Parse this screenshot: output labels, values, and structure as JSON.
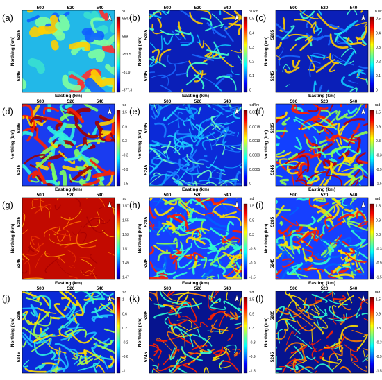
{
  "panels": [
    {
      "label": "(a)",
      "x_label": null,
      "x_ticks": [
        "500",
        "520",
        "540"
      ],
      "y_label": "Northing (km)",
      "y_ticks": [
        "5285",
        "5245"
      ],
      "colorbar": {
        "unit": "nT",
        "ticks": [
          "654.4",
          "589",
          "253.5",
          "-81.9",
          "-377.3"
        ]
      }
    },
    {
      "label": "(b)",
      "x_label": null,
      "x_ticks": [
        "500",
        "520",
        "540"
      ],
      "y_label": "Northing (km)",
      "y_ticks": [
        "5285",
        "5245"
      ],
      "colorbar": {
        "unit": "nT/km",
        "ticks": [
          "0.5",
          "0.4",
          "0.3",
          "0.2",
          "0.1",
          "0"
        ]
      }
    },
    {
      "label": "(c)",
      "x_label": null,
      "x_ticks": [
        "500",
        "520",
        "540"
      ],
      "y_label": "Northing (km)",
      "y_ticks": [
        "5285",
        "5245"
      ],
      "colorbar": {
        "unit": "nT/km",
        "ticks": [
          "0.5",
          "0.4",
          "0.3",
          "0.2",
          "0.1",
          "0"
        ]
      }
    },
    {
      "label": "(d)",
      "x_label": "Easting (km)",
      "x_ticks": [
        "500",
        "520",
        "540"
      ],
      "y_label": "Northing (km)",
      "y_ticks": [
        "5285",
        "5245"
      ],
      "colorbar": {
        "unit": "rad",
        "ticks": [
          "1.5",
          "0.9",
          "0.3",
          "-0.3",
          "-0.9",
          "-1.5"
        ]
      }
    },
    {
      "label": "(e)",
      "x_label": "Easting (km)",
      "x_ticks": [
        "500",
        "520",
        "540"
      ],
      "y_label": "Northing (km)",
      "y_ticks": [
        "5285",
        "5245"
      ],
      "colorbar": {
        "unit": "rad/km",
        "ticks": [
          "0.0022",
          "0.0018",
          "0.0013",
          "0.0009",
          "0.0005",
          "0"
        ]
      }
    },
    {
      "label": "(f)",
      "x_label": "Easting (km)",
      "x_ticks": [
        "500",
        "520",
        "540"
      ],
      "y_label": "Northing (km)",
      "y_ticks": [
        "5285",
        "5245"
      ],
      "colorbar": {
        "unit": "rad",
        "ticks": [
          "1.5",
          "0.9",
          "0.3",
          "-0.3",
          "-0.9",
          "-1.5"
        ]
      }
    },
    {
      "label": "(g)",
      "x_label": "Easting (km)",
      "x_ticks": [
        "500",
        "520",
        "540"
      ],
      "y_label": "Northing (km)",
      "y_ticks": [
        "5285",
        "5245"
      ],
      "colorbar": {
        "unit": "rad",
        "ticks": [
          "1.57",
          "1.55",
          "1.53",
          "1.51",
          "1.49",
          "1.47"
        ]
      }
    },
    {
      "label": "(h)",
      "x_label": "Easting (km)",
      "x_ticks": [
        "500",
        "520",
        "540"
      ],
      "y_label": "Northing (km)",
      "y_ticks": [
        "5285",
        "5245"
      ],
      "colorbar": {
        "unit": "rad",
        "ticks": [
          "1.5",
          "0.9",
          "0.3",
          "-0.3",
          "-0.9",
          "-1.5"
        ]
      }
    },
    {
      "label": "(i)",
      "x_label": "Easting (km)",
      "x_ticks": [
        "500",
        "520",
        "540"
      ],
      "y_label": "Northing (km)",
      "y_ticks": [
        "5285",
        "5245"
      ],
      "colorbar": {
        "unit": "rad",
        "ticks": [
          "1.5",
          "0.9",
          "0.3",
          "-0.3",
          "-0.9",
          "-1.5"
        ]
      }
    },
    {
      "label": "(j)",
      "x_label": "Easting (km)",
      "x_ticks": [
        "500",
        "520",
        "540"
      ],
      "y_label": "Northing (km)",
      "y_ticks": [
        "5285",
        "5245"
      ],
      "colorbar": {
        "unit": "rad",
        "ticks": [
          "1",
          "0.6",
          "0.2",
          "-0.2",
          "-0.6",
          "-1"
        ]
      }
    },
    {
      "label": "(k)",
      "x_label": "Easting (km)",
      "x_ticks": [
        "500",
        "520",
        "540"
      ],
      "y_label": "Northing (km)",
      "y_ticks": [
        "5285",
        "5245"
      ],
      "colorbar": {
        "unit": "rad",
        "ticks": [
          "1.5",
          "0.9",
          "0.3",
          "-0.3",
          "-0.9",
          "-1.5"
        ]
      }
    },
    {
      "label": "(l)",
      "x_label": "Easting (km)",
      "x_ticks": [
        "500",
        "520",
        "540"
      ],
      "y_label": "Northing (km)",
      "y_ticks": [
        "5285",
        "5245"
      ],
      "colorbar": {
        "unit": "rad",
        "ticks": [
          "1.5",
          "0.9",
          "0.3",
          "-0.3",
          "-0.9",
          "-1.5"
        ]
      }
    }
  ]
}
